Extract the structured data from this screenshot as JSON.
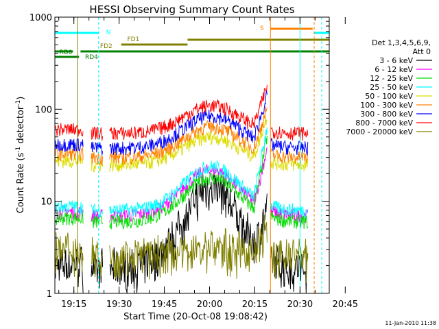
{
  "chart_data": {
    "type": "line",
    "title": "HESSI Observing Summary Count Rates",
    "xlabel": "Start Time (20-Oct-08 19:08:42)",
    "ylabel_main": "Count Rate (s",
    "ylabel_sup1": "-1",
    "ylabel_mid": " detector",
    "ylabel_sup2": "-1",
    "ylabel_end": ")",
    "yscale": "log",
    "ylim": [
      1,
      1000
    ],
    "xlim_minutes": [
      0,
      91
    ],
    "x_tick_labels": [
      "19:15",
      "19:30",
      "19:45",
      "20:00",
      "20:15",
      "20:30",
      "20:45"
    ],
    "x_tick_minutes": [
      6.3,
      21.3,
      36.3,
      51.3,
      66.3,
      81.3,
      96.3
    ],
    "y_tick_labels": [
      "1",
      "10",
      "100",
      "1000"
    ],
    "legend_header": [
      "Det 1,3,4,5,6,9,",
      "Att 0"
    ],
    "legend_position": "right",
    "series": [
      {
        "name": "3 - 6 keV",
        "color": "#000000",
        "base": 1.8,
        "peak": 14,
        "flare": 8
      },
      {
        "name": "6 - 12 keV",
        "color": "#ff00ff",
        "base": 7,
        "peak": 22,
        "flare": 40
      },
      {
        "name": "12 - 25 keV",
        "color": "#00dd00",
        "base": 6,
        "peak": 18,
        "flare": 55
      },
      {
        "name": "25 - 50 keV",
        "color": "#00ffff",
        "base": 8,
        "peak": 24,
        "flare": 70
      },
      {
        "name": "50 - 100 keV",
        "color": "#dddd00",
        "base": 25,
        "peak": 50,
        "flare": 90
      },
      {
        "name": "100 - 300 keV",
        "color": "#ff8000",
        "base": 30,
        "peak": 65,
        "flare": 110
      },
      {
        "name": "300 - 800 keV",
        "color": "#0000ff",
        "base": 38,
        "peak": 85,
        "flare": 150
      },
      {
        "name": "800 - 7000 keV",
        "color": "#ff0000",
        "base": 55,
        "peak": 110,
        "flare": 190
      },
      {
        "name": "7000 - 20000 keV",
        "color": "#808000",
        "base": 2.5,
        "peak": 3,
        "flare": 5
      }
    ],
    "flags": [
      {
        "label": "N",
        "color": "#00ffff"
      },
      {
        "label": "S",
        "color": "#ff8000"
      },
      {
        "label": "FD1",
        "color": "#808000"
      },
      {
        "label": "FD2",
        "color": "#808000"
      },
      {
        "label": "RD0",
        "color": "#008000"
      },
      {
        "label": "RD4",
        "color": "#008000"
      }
    ],
    "timestamp": "11-Jan-2010 11:38"
  }
}
